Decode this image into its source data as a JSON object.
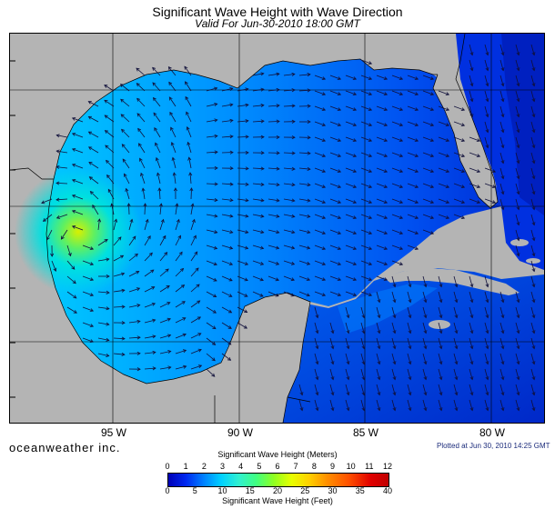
{
  "title": "Significant Wave Height with Wave Direction",
  "subtitle": "Valid For Jun-30-2010 18:00 GMT",
  "longitude_labels": [
    "95 W",
    "90 W",
    "85 W",
    "80 W"
  ],
  "brand": "oceanweather inc.",
  "plotted_note": "Plotted at Jun 30, 2010 14:25 GMT",
  "colorbar": {
    "meters_title": "Significant Wave Height (Meters)",
    "meters_ticks": [
      "0",
      "1",
      "2",
      "3",
      "4",
      "5",
      "6",
      "7",
      "8",
      "9",
      "10",
      "11",
      "12"
    ],
    "feet_title": "Significant Wave Height (Feet)",
    "feet_ticks": [
      "0",
      "5",
      "10",
      "15",
      "20",
      "25",
      "30",
      "35",
      "40"
    ],
    "colors": [
      "#0000b8",
      "#0028f0",
      "#0080ff",
      "#00d0ff",
      "#30f0d0",
      "#40ff80",
      "#90ff20",
      "#e8ff00",
      "#ffd000",
      "#ff9000",
      "#ff5000",
      "#e00000"
    ]
  },
  "map_colors": {
    "land": "#b4b4b4",
    "deep_water": "#0030e0",
    "mid_water": "#0090ff",
    "peak": "#c8f000"
  },
  "storm_peak_meters": 6
}
